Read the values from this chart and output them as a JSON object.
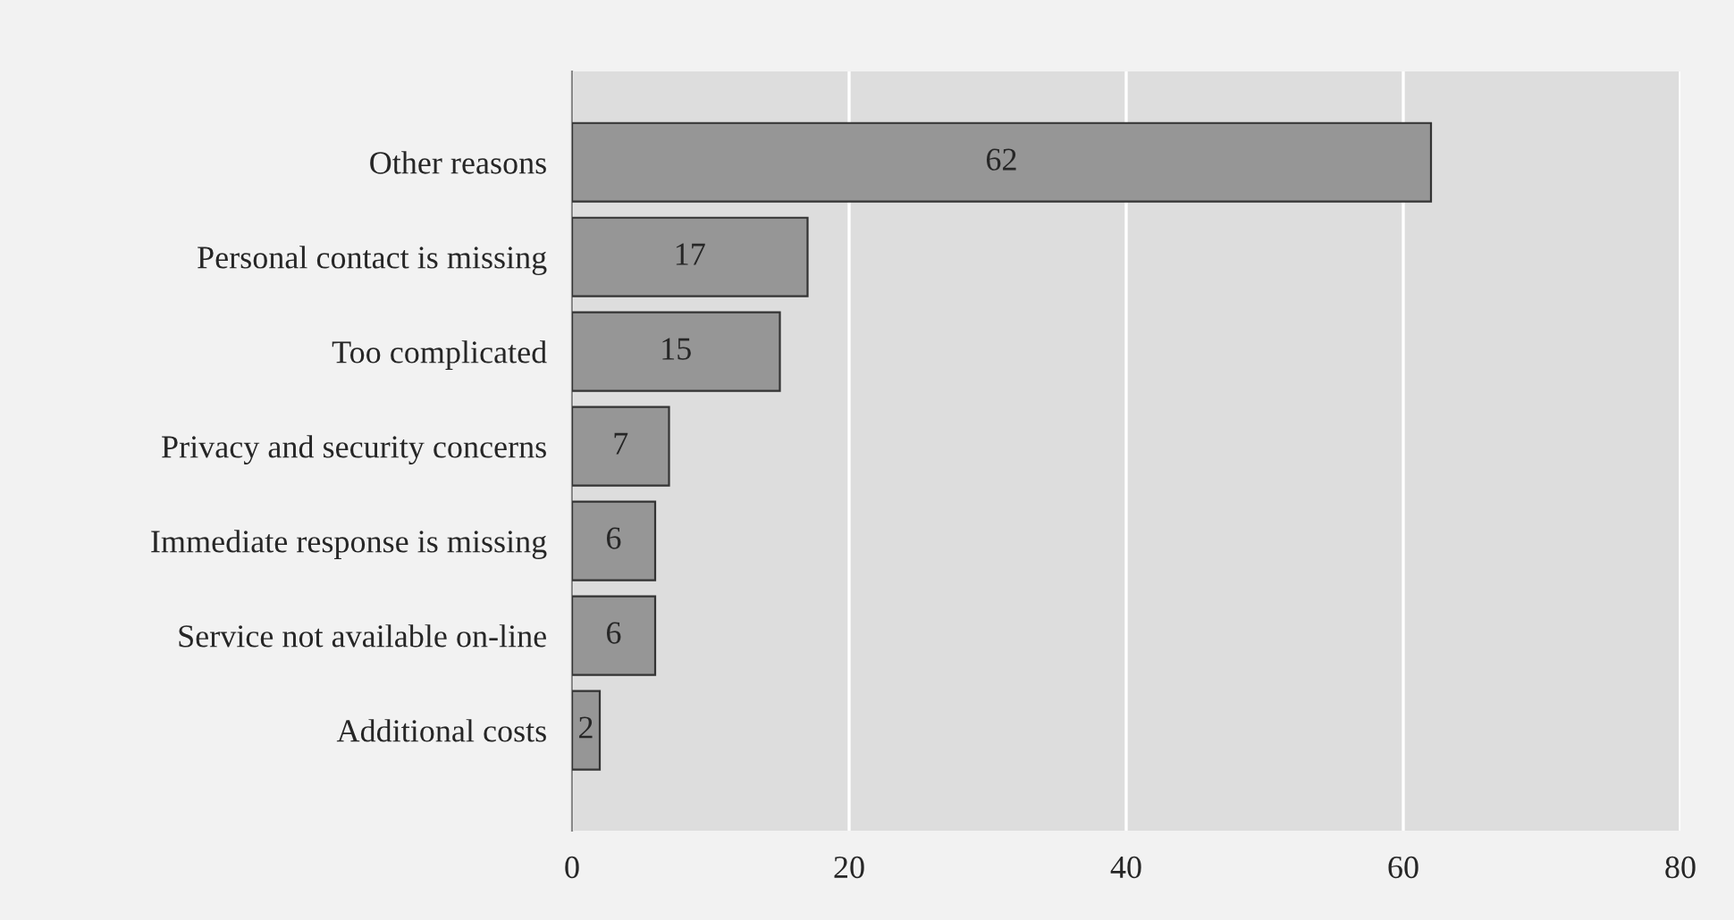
{
  "chart_data": {
    "type": "bar",
    "orientation": "horizontal",
    "categories": [
      "Other reasons",
      "Personal contact is missing",
      "Too complicated",
      "Privacy and security concerns",
      "Immediate response is missing",
      "Service not available on-line",
      "Additional costs"
    ],
    "values": [
      62,
      17,
      15,
      7,
      6,
      6,
      2
    ],
    "color": "#969696",
    "xlim": [
      0,
      80
    ],
    "xticks": [
      0,
      20,
      40,
      60,
      80
    ],
    "grid": "x",
    "data_labels": true
  }
}
